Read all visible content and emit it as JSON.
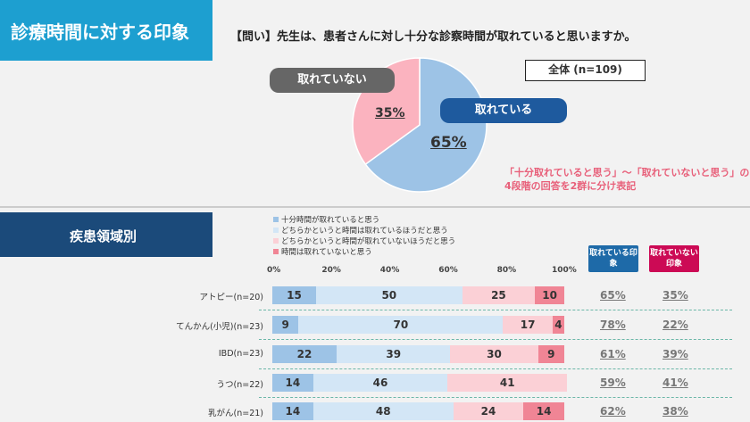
{
  "header": {
    "title": "診療時間に対する印象",
    "question": "【問い】先生は、患者さんに対し十分な診察時間が取れていると思いますか。"
  },
  "overall": {
    "total_label": "全体 (n=109)",
    "no_label": "取れていない",
    "yes_label": "取れている",
    "no_pct": "35%",
    "yes_pct": "65%",
    "note_line1": "「十分取れていると思う」～「取れていないと思う」の",
    "note_line2": "4段階の回答を2群に分け表記"
  },
  "section2": {
    "title": "疾患領域別",
    "yes_header": "取れている印象",
    "no_header": "取れていない印象"
  },
  "colors": {
    "s1": "#9dc3e6",
    "s2": "#d3e6f6",
    "s3": "#fbd0d6",
    "s4": "#f08595",
    "yes_hdr": "#1e6aa8",
    "no_hdr": "#cc0a55",
    "pie_yes": "#9dc3e6",
    "pie_no": "#fbb3bf"
  },
  "chart_data": [
    {
      "type": "pie",
      "labels": [
        "取れている",
        "取れていない"
      ],
      "values": [
        65,
        35
      ]
    },
    {
      "type": "bar",
      "orientation": "horizontal",
      "stacked": true,
      "categories": [
        "アトピー(n=20)",
        "てんかん(小児)(n=23)",
        "IBD(n=23)",
        "うつ(n=22)",
        "乳がん(n=21)"
      ],
      "xlim": [
        0,
        100
      ],
      "xticks": [
        "0%",
        "20%",
        "40%",
        "60%",
        "80%",
        "100%"
      ],
      "legend": "top",
      "series": [
        {
          "name": "十分時間が取れていると思う",
          "values": [
            15,
            9,
            22,
            14,
            14
          ]
        },
        {
          "name": "どちらかというと時間は取れているほうだと思う",
          "values": [
            50,
            70,
            39,
            46,
            48
          ]
        },
        {
          "name": "どちらかというと時間が取れていないほうだと思う",
          "values": [
            25,
            17,
            30,
            41,
            24
          ]
        },
        {
          "name": "時間は取れていないと思う",
          "values": [
            10,
            4,
            9,
            0,
            14
          ]
        }
      ],
      "yes_totals": [
        "65%",
        "78%",
        "61%",
        "59%",
        "62%"
      ],
      "no_totals": [
        "35%",
        "22%",
        "39%",
        "41%",
        "38%"
      ]
    }
  ]
}
